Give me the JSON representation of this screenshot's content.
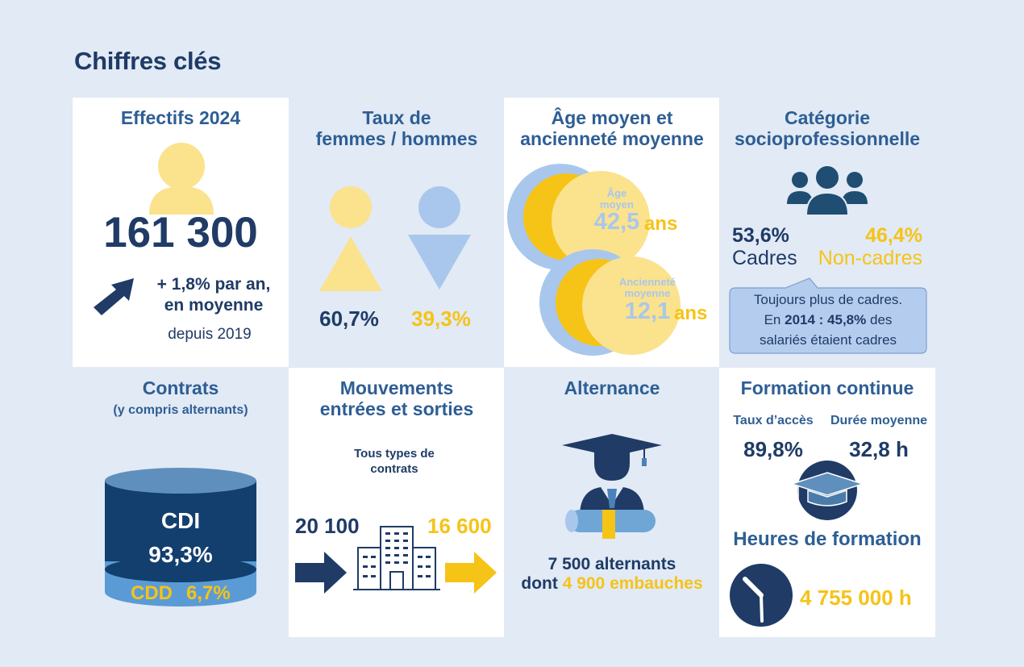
{
  "page_title": "Chiffres clés",
  "colors": {
    "navy": "#1f3b66",
    "title_blue": "#2e5e94",
    "yellow": "#f6c317",
    "light_yellow": "#fbe28d",
    "light_blue": "#a9c7ec",
    "bg": "#e1eaf5"
  },
  "effectifs": {
    "title": "Effectifs 2024",
    "value": "161 300",
    "growth_line1": "+ 1,8% par an,",
    "growth_line2": "en moyenne",
    "since": "depuis 2019"
  },
  "femmes_hommes": {
    "title_line1": "Taux de",
    "title_line2": "femmes / hommes",
    "femmes": "60,7%",
    "hommes": "39,3%"
  },
  "age": {
    "title_line1": "Âge moyen et",
    "title_line2": "ancienneté moyenne",
    "age_label_1": "Âge",
    "age_label_2": "moyen",
    "age_value": "42,5",
    "age_unit": "ans",
    "anc_label_1": "Ancienneté",
    "anc_label_2": "moyenne",
    "anc_value": "12,1",
    "anc_unit": "ans"
  },
  "csp": {
    "title_line1": "Catégorie",
    "title_line2": "socioprofessionnelle",
    "cadres_value": "53,6%",
    "cadres_label": "Cadres",
    "noncadres_value": "46,4%",
    "noncadres_label": "Non-cadres",
    "note_line1": "Toujours plus de cadres.",
    "note_prefix": "En ",
    "note_year": "2014 : 45,8%",
    "note_mid": " des",
    "note_line3": "salariés étaient cadres"
  },
  "contrats": {
    "title": "Contrats",
    "subtitle": "(y compris alternants)",
    "cdi_label": "CDI",
    "cdi_value": "93,3%",
    "cdd_label": "CDD",
    "cdd_value": "6,7%"
  },
  "mouvements": {
    "title_line1": "Mouvements",
    "title_line2": "entrées et sorties",
    "sub_line1": "Tous types de",
    "sub_line2": "contrats",
    "entrees": "20 100",
    "sorties": "16 600"
  },
  "alternance": {
    "title": "Alternance",
    "line1": "7 500 alternants",
    "line2_prefix": "dont ",
    "line2_value": "4 900 embauches"
  },
  "formation": {
    "title": "Formation continue",
    "acces_label": "Taux d’accès",
    "acces_value": "89,8%",
    "duree_label": "Durée moyenne",
    "duree_value": "32,8 h",
    "heures_title": "Heures de formation",
    "heures_value": "4 755 000 h"
  }
}
